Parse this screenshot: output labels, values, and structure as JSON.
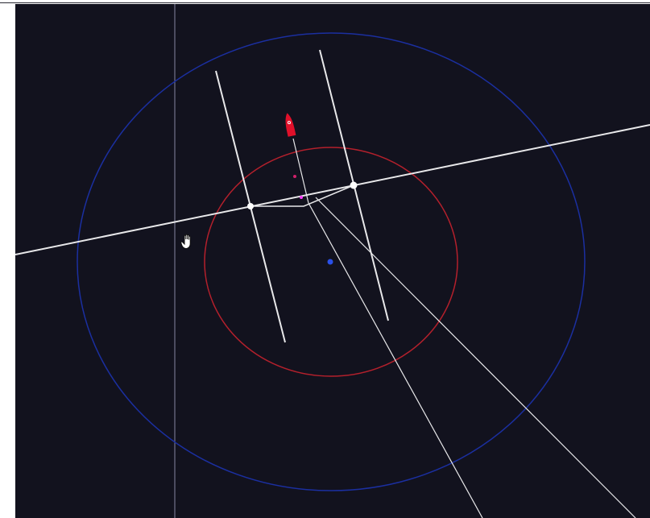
{
  "viewport": {
    "background": "#12121e",
    "frame": "#ffffff"
  },
  "colors": {
    "outer_ring": "#1b2fa0",
    "inner_ring": "#b4202c",
    "track_line": "#e8e8ea",
    "guide_line": "#9a9ab8",
    "marker_red": "#e0102a",
    "marker_magenta": "#ff3dff",
    "center_dot": "#2a50e8",
    "small_red_dot": "#d0206a"
  },
  "icons": {
    "cursor": "hand-pointer-icon",
    "vehicle": "red-rocket-icon"
  }
}
